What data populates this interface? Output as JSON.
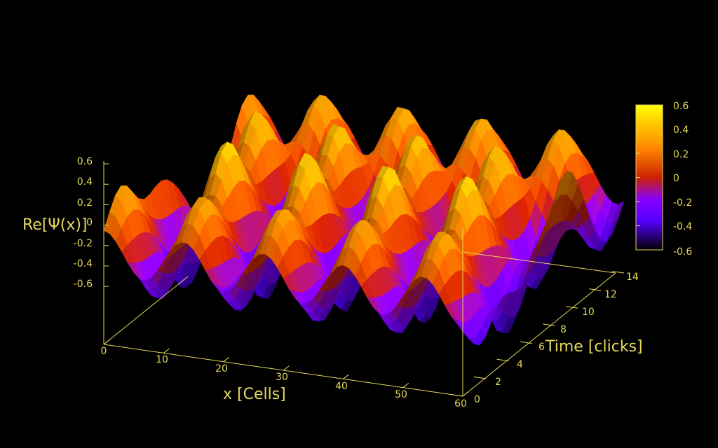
{
  "chart_data": {
    "type": "surface",
    "zlabel": "Re[Ψ(x)]",
    "xlabel": "x [Cells]",
    "ylabel": "Time [clicks]",
    "xlim": [
      0,
      60
    ],
    "ylim": [
      0,
      14
    ],
    "zlim": [
      -0.6,
      0.6
    ],
    "x_ticks": [
      "0",
      "10",
      "20",
      "30",
      "40",
      "50",
      "60"
    ],
    "y_ticks": [
      "0",
      "2",
      "4",
      "6",
      "8",
      "10",
      "12",
      "14"
    ],
    "z_ticks": [
      "0.6",
      "0.4",
      "0.2",
      "0",
      "-0.2",
      "-0.4",
      "-0.6"
    ],
    "colorbar": {
      "ticks": [
        "0.6",
        "0.4",
        "0.2",
        "0",
        "-0.2",
        "-0.4",
        "-0.6"
      ],
      "range": [
        -0.6,
        0.6
      ]
    },
    "colormap": [
      "#000000",
      "#5500ff",
      "#8800ff",
      "#cc2200",
      "#ff8800",
      "#ffcc00",
      "#ffff00"
    ],
    "colors": {
      "axis": "#e6d95a",
      "background": "#000000"
    },
    "ridge_rows": [
      {
        "y": 1.5,
        "amp": 0.35,
        "waves_x": 4.5,
        "phase": 0.0
      },
      {
        "y": 5.0,
        "amp": 0.5,
        "waves_x": 4.5,
        "phase": 1.2
      },
      {
        "y": 9.0,
        "amp": 0.45,
        "waves_x": 4.5,
        "phase": 2.5
      },
      {
        "y": 12.5,
        "amp": 0.38,
        "waves_x": 4.5,
        "phase": 0.6
      }
    ]
  }
}
